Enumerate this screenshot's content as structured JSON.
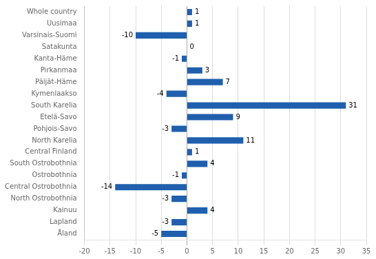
{
  "chart_data": {
    "type": "bar",
    "orientation": "horizontal",
    "categories": [
      "Whole country",
      "Uusimaa",
      "Varsinais-Suomi",
      "Satakunta",
      "Kanta-Häme",
      "Pirkanmaa",
      "Päijät-Häme",
      "Kymenlaakso",
      "South Karelia",
      "Etelä-Savo",
      "Pohjois-Savo",
      "North Karelia",
      "Central Finland",
      "South Ostrobothnia",
      "Ostrobothnia",
      "Central Ostrobothnia",
      "North Ostrobothnia",
      "Kainuu",
      "Lapland",
      "Åland"
    ],
    "values": [
      1,
      1,
      -10,
      0,
      -1,
      3,
      7,
      -4,
      31,
      9,
      -3,
      11,
      1,
      4,
      -1,
      -14,
      -3,
      4,
      -3,
      -5
    ],
    "color": "#1F5FAD",
    "xlim": [
      -20,
      35
    ],
    "xticks": [
      -20,
      -15,
      -10,
      -5,
      0,
      5,
      10,
      15,
      20,
      25,
      30,
      35
    ],
    "grid": true,
    "data_labels": true
  }
}
